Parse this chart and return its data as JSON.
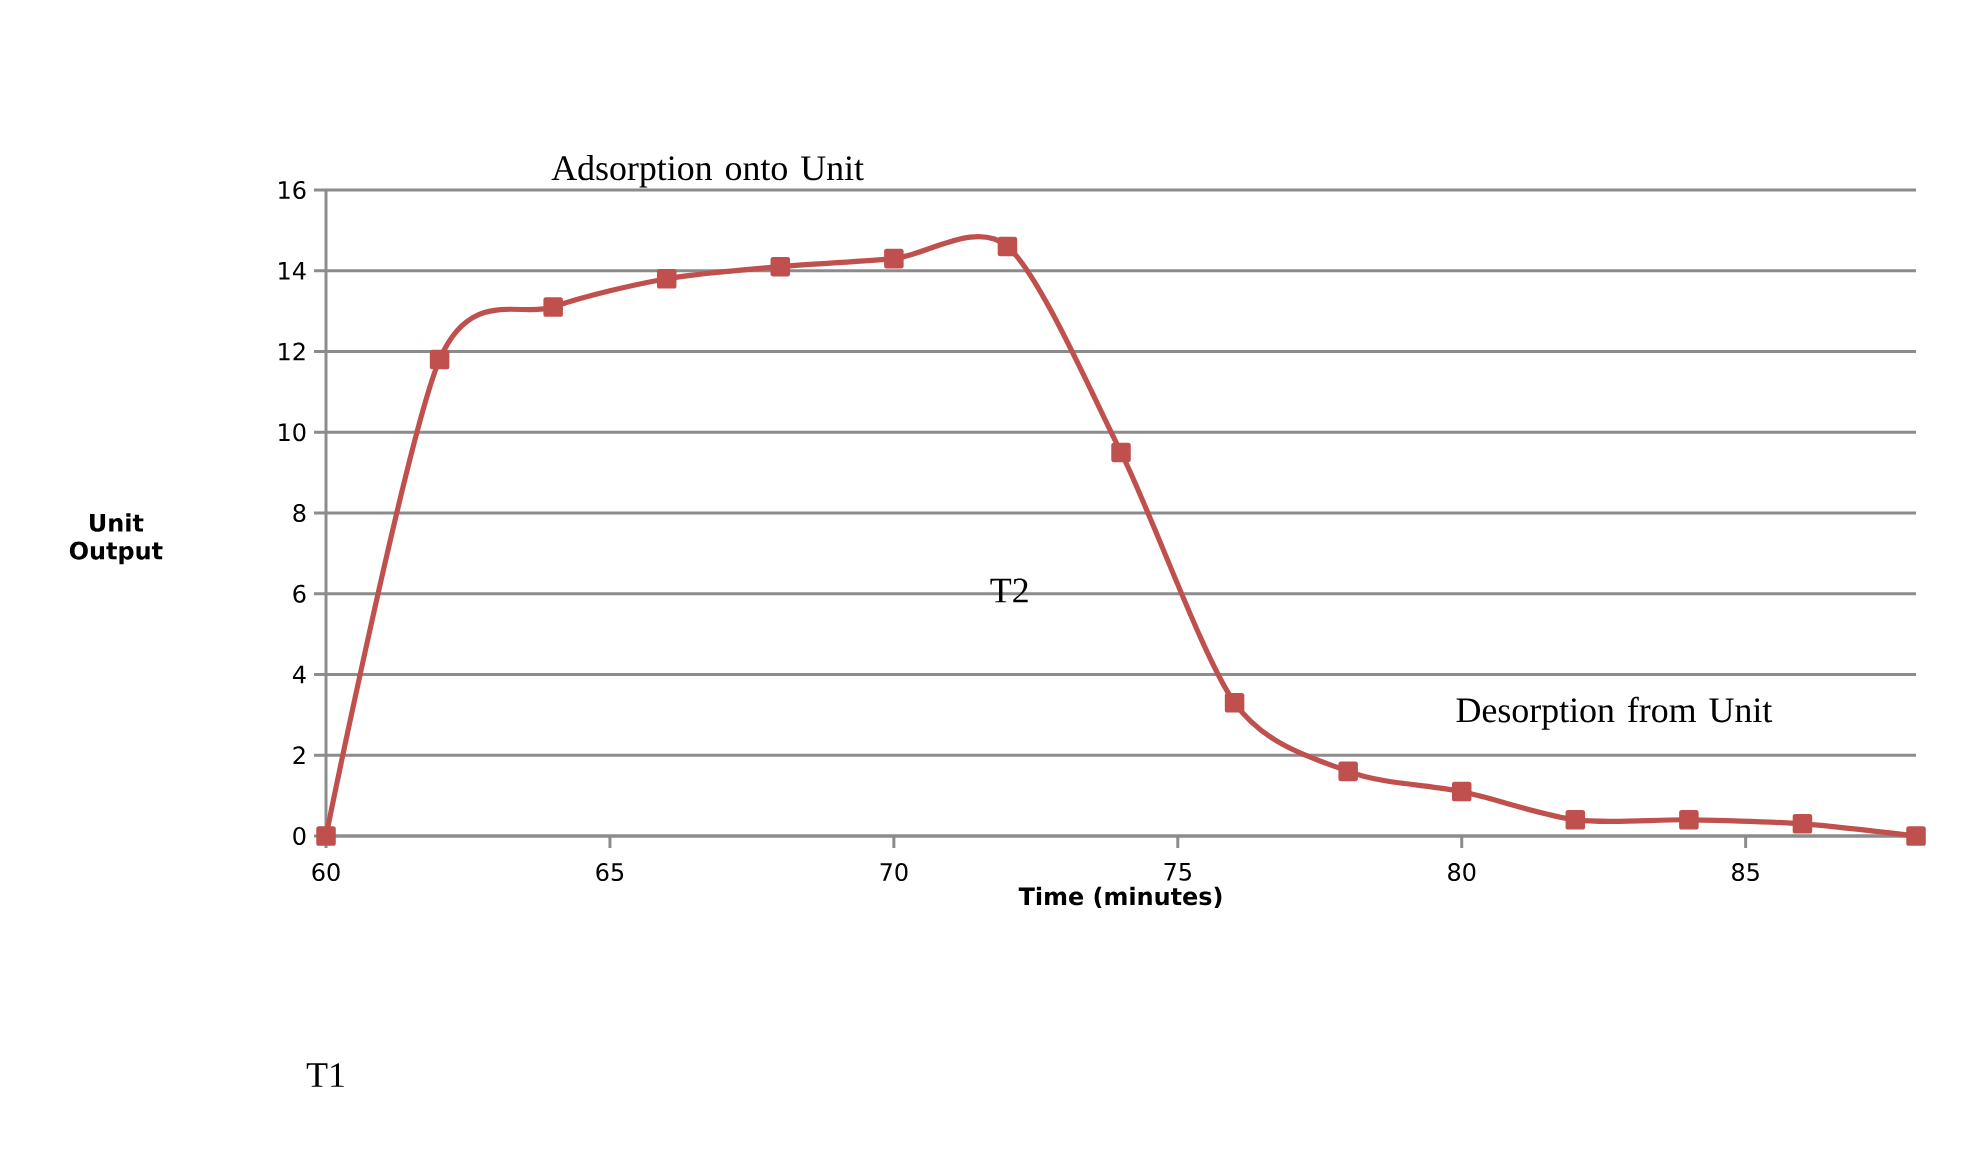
{
  "chart_data": {
    "type": "line",
    "xlabel": "Time (minutes)",
    "ylabel": "Unit Output",
    "x": [
      60,
      62,
      64,
      66,
      68,
      70,
      72,
      74,
      76,
      78,
      80,
      82,
      84,
      86,
      88
    ],
    "series": [
      {
        "color": "#c0504d",
        "values": [
          0,
          11.8,
          13.1,
          13.8,
          14.1,
          14.3,
          14.6,
          9.5,
          3.3,
          1.6,
          1.1,
          0.4,
          0.4,
          0.3,
          0
        ]
      }
    ],
    "xlim": [
      60,
      88
    ],
    "xticks": [
      60,
      65,
      70,
      75,
      80,
      85
    ],
    "ylim": [
      0,
      16
    ],
    "yticks": [
      0,
      2,
      4,
      6,
      8,
      10,
      12,
      14,
      16
    ],
    "grid": "y",
    "marker": "square",
    "line_style": "solid",
    "annotations": [
      "Adsorption onto Unit",
      "Desorption from Unit",
      "T1",
      "T2"
    ]
  }
}
